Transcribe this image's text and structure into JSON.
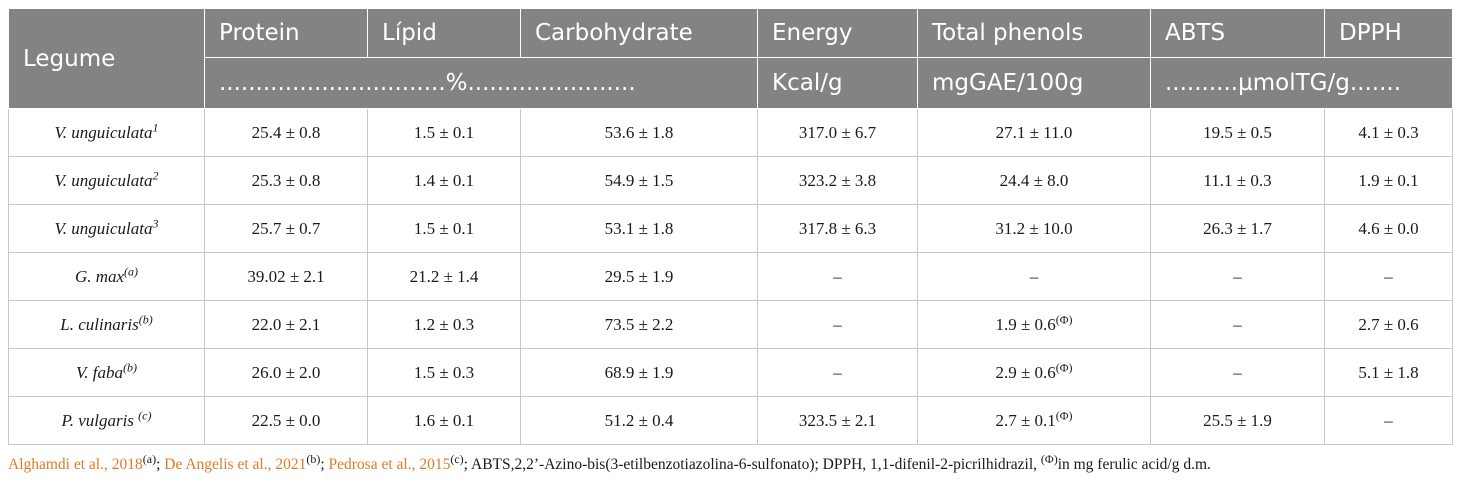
{
  "table": {
    "header": {
      "legume": "Legume",
      "protein": "Protein",
      "lipid": "Lípid",
      "carbohydrate": "Carbohydrate",
      "energy": "Energy",
      "total_phenols": "Total phenols",
      "abts": "ABTS",
      "dpph": "DPPH",
      "unit_percent": "...............................%.......................",
      "unit_energy": "Kcal/g",
      "unit_phenols": "mgGAE/100g",
      "unit_antiox": "..........µmolTG/g......."
    },
    "rows": [
      {
        "legume": "V. unguiculata",
        "sup": "1",
        "protein": "25.4 ± 0.8",
        "lipid": "1.5 ± 0.1",
        "carbohydrate": "53.6 ± 1.8",
        "energy": "317.0 ± 6.7",
        "phenols": "27.1 ± 11.0",
        "phenols_sup": "",
        "abts": "19.5 ± 0.5",
        "dpph": "4.1 ± 0.3"
      },
      {
        "legume": "V. unguiculata",
        "sup": "2",
        "protein": "25.3 ± 0.8",
        "lipid": "1.4 ± 0.1",
        "carbohydrate": "54.9 ± 1.5",
        "energy": "323.2 ± 3.8",
        "phenols": "24.4 ± 8.0",
        "phenols_sup": "",
        "abts": "11.1 ± 0.3",
        "dpph": "1.9 ± 0.1"
      },
      {
        "legume": "V. unguiculata",
        "sup": "3",
        "protein": "25.7 ± 0.7",
        "lipid": "1.5 ± 0.1",
        "carbohydrate": "53.1 ± 1.8",
        "energy": "317.8 ± 6.3",
        "phenols": "31.2 ± 10.0",
        "phenols_sup": "",
        "abts": "26.3 ± 1.7",
        "dpph": "4.6 ± 0.0"
      },
      {
        "legume": "G. max",
        "sup": "(a)",
        "protein": "39.02 ± 2.1",
        "lipid": "21.2 ± 1.4",
        "carbohydrate": "29.5 ± 1.9",
        "energy": "–",
        "phenols": "–",
        "phenols_sup": "",
        "abts": "–",
        "dpph": "–"
      },
      {
        "legume": "L. culinaris",
        "sup": "(b)",
        "protein": "22.0 ± 2.1",
        "lipid": "1.2 ± 0.3",
        "carbohydrate": "73.5 ± 2.2",
        "energy": "–",
        "phenols": "1.9 ± 0.6",
        "phenols_sup": "(Φ)",
        "abts": "–",
        "dpph": "2.7 ± 0.6"
      },
      {
        "legume": "V. faba",
        "sup": "(b)",
        "protein": "26.0 ± 2.0",
        "lipid": "1.5 ± 0.3",
        "carbohydrate": "68.9 ± 1.9",
        "energy": "–",
        "phenols": "2.9 ± 0.6",
        "phenols_sup": "(Φ)",
        "abts": "–",
        "dpph": "5.1 ± 1.8"
      },
      {
        "legume": "P. vulgaris ",
        "sup": "(c)",
        "protein": "22.5 ± 0.0",
        "lipid": "1.6 ± 0.1",
        "carbohydrate": "51.2 ± 0.4",
        "energy": "323.5 ± 2.1",
        "phenols": "2.7 ± 0.1",
        "phenols_sup": "(Φ)",
        "abts": "25.5 ± 1.9",
        "dpph": "–"
      }
    ]
  },
  "footnote": {
    "ref_a": "Alghamdi et al., 2018",
    "ref_a_mark": "(a)",
    "sep1": "; ",
    "ref_b": "De Angelis et al., 2021",
    "ref_b_mark": "(b)",
    "sep2": "; ",
    "ref_c": "Pedrosa et al., 2015",
    "ref_c_mark": "(c)",
    "tail_text": "; ABTS,2,2’-Azino-bis(3-etilbenzotiazolina-6-sulfonato); DPPH, 1,1-difenil-2-picrilhidrazil, ",
    "phi_mark": "(Φ)",
    "phi_text": "in mg ferulic acid/g d.m."
  },
  "colors": {
    "header_bg": "#838383",
    "header_text": "#ffffff",
    "reference_link": "#e07b27"
  }
}
